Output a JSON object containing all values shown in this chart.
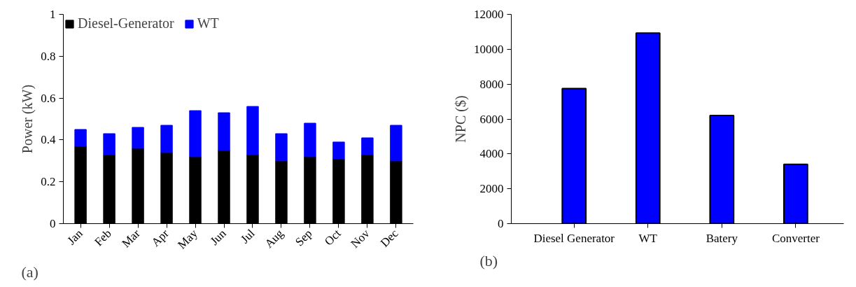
{
  "chart_data": [
    {
      "type": "bar",
      "stacked": true,
      "ylabel": "Power (kW)",
      "categories": [
        "Jan",
        "Feb",
        "Mar",
        "Apr",
        "May",
        "Jun",
        "Jul",
        "Aug",
        "Sep",
        "Oct",
        "Nov",
        "Dec"
      ],
      "series": [
        {
          "name": "Diesel-Generator",
          "color": "#000000",
          "values": [
            0.37,
            0.33,
            0.36,
            0.34,
            0.32,
            0.35,
            0.33,
            0.3,
            0.32,
            0.31,
            0.33,
            0.3
          ]
        },
        {
          "name": "WT",
          "color": "#0000ff",
          "values": [
            0.08,
            0.1,
            0.1,
            0.13,
            0.22,
            0.18,
            0.23,
            0.13,
            0.16,
            0.08,
            0.08,
            0.17
          ]
        }
      ],
      "ylim": [
        0,
        1
      ],
      "yticks": [
        0,
        0.2,
        0.4,
        0.6,
        0.8,
        1
      ],
      "legend": "top left",
      "annotations": [
        "(a)"
      ]
    },
    {
      "type": "bar",
      "ylabel": "NPC ($)",
      "categories": [
        "Diesel Generator",
        "WT",
        "Batery",
        "Converter"
      ],
      "values": [
        7750,
        10930,
        6200,
        3400
      ],
      "color": "#0000ff",
      "ylim": [
        0,
        12000
      ],
      "yticks": [
        0,
        2000,
        4000,
        6000,
        8000,
        10000,
        12000
      ],
      "annotations": [
        "(b)"
      ]
    }
  ]
}
